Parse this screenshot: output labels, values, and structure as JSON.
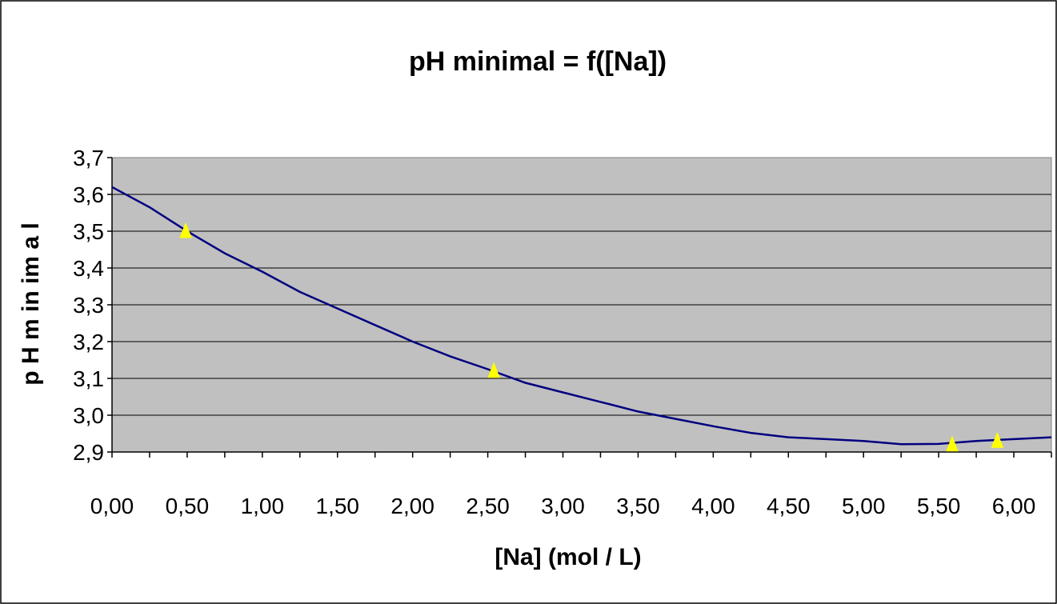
{
  "chart_data": {
    "type": "line",
    "title": "pH minimal = f([Na])",
    "xlabel": "[Na] (mol / L)",
    "ylabel": "p H  m in im a l",
    "xlim": [
      0,
      6.25
    ],
    "ylim": [
      2.9,
      3.7
    ],
    "x_ticks": [
      "0,00",
      "0,50",
      "1,00",
      "1,50",
      "2,00",
      "2,50",
      "3,00",
      "3,50",
      "4,00",
      "4,50",
      "5,00",
      "5,50",
      "6,00"
    ],
    "y_ticks": [
      "2,9",
      "3,0",
      "3,1",
      "3,2",
      "3,3",
      "3,4",
      "3,5",
      "3,6",
      "3,7"
    ],
    "grid": "horizontal",
    "plot_background": "#c0c0c0",
    "series": [
      {
        "kind": "line",
        "color": "#000080",
        "x": [
          0,
          0.25,
          0.5,
          0.75,
          1.0,
          1.25,
          1.5,
          1.75,
          2.0,
          2.25,
          2.5,
          2.75,
          3.0,
          3.25,
          3.5,
          3.75,
          4.0,
          4.25,
          4.5,
          4.75,
          5.0,
          5.25,
          5.5,
          5.75,
          6.0,
          6.25
        ],
        "y": [
          3.62,
          3.565,
          3.5,
          3.44,
          3.39,
          3.335,
          3.29,
          3.245,
          3.2,
          3.16,
          3.125,
          3.088,
          3.062,
          3.036,
          3.01,
          2.99,
          2.97,
          2.952,
          2.94,
          2.935,
          2.93,
          2.921,
          2.922,
          2.93,
          2.935,
          2.94
        ]
      },
      {
        "kind": "markers",
        "marker": "triangle",
        "color": "#ffff00",
        "x": [
          0.49,
          2.54,
          5.59,
          5.89
        ],
        "y": [
          3.5,
          3.12,
          2.92,
          2.93
        ]
      }
    ]
  }
}
